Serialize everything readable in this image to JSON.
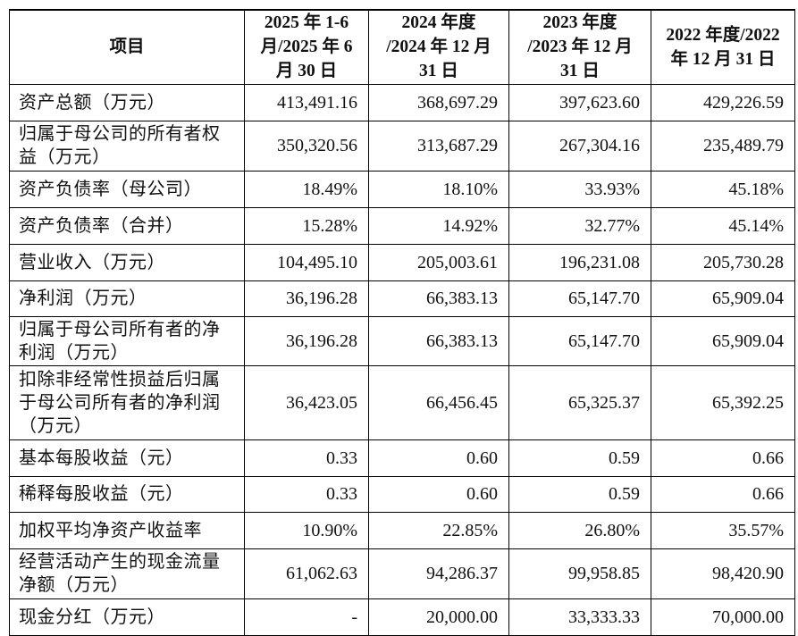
{
  "table": {
    "headers": [
      [
        "项目"
      ],
      [
        "2025 年 1-6",
        "月/2025 年 6",
        "月 30 日"
      ],
      [
        "2024 年度",
        "/2024 年 12 月",
        "31 日"
      ],
      [
        "2023 年度",
        "/2023 年 12 月",
        "31 日"
      ],
      [
        "2022 年度/2022",
        "年 12 月 31 日"
      ]
    ],
    "rows": [
      {
        "label": [
          "资产总额（万元）"
        ],
        "values": [
          "413,491.16",
          "368,697.29",
          "397,623.60",
          "429,226.59"
        ]
      },
      {
        "label": [
          "归属于母公司的所有者权",
          "益（万元）"
        ],
        "values": [
          "350,320.56",
          "313,687.29",
          "267,304.16",
          "235,489.79"
        ]
      },
      {
        "label": [
          "资产负债率（母公司）"
        ],
        "values": [
          "18.49%",
          "18.10%",
          "33.93%",
          "45.18%"
        ]
      },
      {
        "label": [
          "资产负债率（合并）"
        ],
        "values": [
          "15.28%",
          "14.92%",
          "32.77%",
          "45.14%"
        ]
      },
      {
        "label": [
          "营业收入（万元）"
        ],
        "values": [
          "104,495.10",
          "205,003.61",
          "196,231.08",
          "205,730.28"
        ]
      },
      {
        "label": [
          "净利润（万元）"
        ],
        "values": [
          "36,196.28",
          "66,383.13",
          "65,147.70",
          "65,909.04"
        ]
      },
      {
        "label": [
          "归属于母公司所有者的净",
          "利润（万元）"
        ],
        "values": [
          "36,196.28",
          "66,383.13",
          "65,147.70",
          "65,909.04"
        ]
      },
      {
        "label": [
          "扣除非经常性损益后归属",
          "于母公司所有者的净利润",
          "（万元）"
        ],
        "values": [
          "36,423.05",
          "66,456.45",
          "65,325.37",
          "65,392.25"
        ]
      },
      {
        "label": [
          "基本每股收益（元）"
        ],
        "values": [
          "0.33",
          "0.60",
          "0.59",
          "0.66"
        ]
      },
      {
        "label": [
          "稀释每股收益（元）"
        ],
        "values": [
          "0.33",
          "0.60",
          "0.59",
          "0.66"
        ]
      },
      {
        "label": [
          "加权平均净资产收益率"
        ],
        "values": [
          "10.90%",
          "22.85%",
          "26.80%",
          "35.57%"
        ]
      },
      {
        "label": [
          "经营活动产生的现金流量",
          "净额（万元）"
        ],
        "values": [
          "61,062.63",
          "94,286.37",
          "99,958.85",
          "98,420.90"
        ]
      },
      {
        "label": [
          "现金分红（万元）"
        ],
        "values": [
          "-",
          "20,000.00",
          "33,333.33",
          "70,000.00"
        ]
      }
    ]
  }
}
